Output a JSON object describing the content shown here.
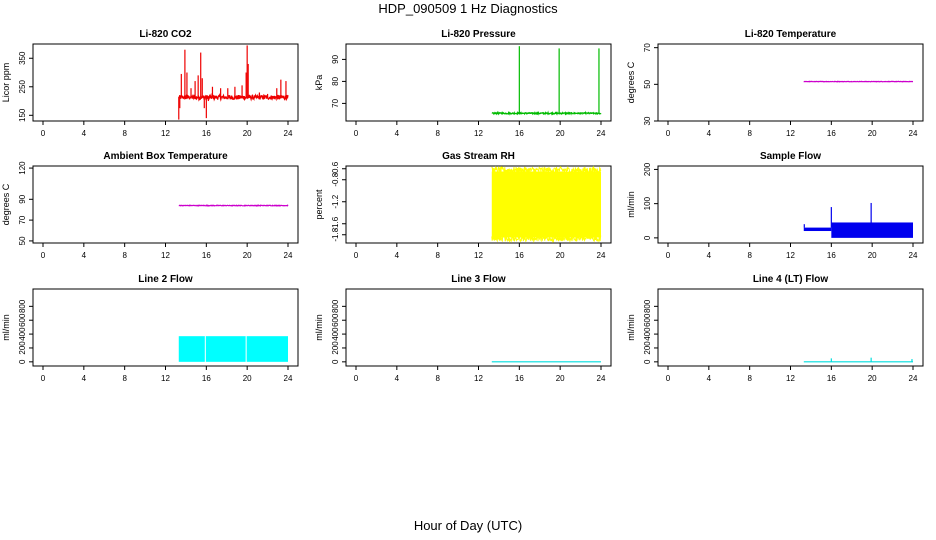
{
  "page": {
    "title": "HDP_090509  1 Hz Diagnostics",
    "xlabel": "Hour of Day (UTC)"
  },
  "chart_data": [
    {
      "id": "co2",
      "type": "line",
      "title": "Li-820 CO2",
      "ylabel": "Licor ppm",
      "color": "#ee0000",
      "xlim": [
        0,
        24
      ],
      "xticks": [
        0,
        4,
        8,
        12,
        16,
        20,
        24
      ],
      "ylim": [
        130,
        400
      ],
      "yticks": [
        150,
        250,
        350
      ],
      "series": [
        {
          "name": "CO2",
          "data_range": [
            13.3,
            24
          ],
          "base": 213,
          "noise": 8,
          "spikes": [
            [
              13.3,
              135
            ],
            [
              13.4,
              175
            ],
            [
              13.55,
              295
            ],
            [
              13.9,
              380
            ],
            [
              14.1,
              300
            ],
            [
              14.5,
              245
            ],
            [
              14.9,
              270
            ],
            [
              15.2,
              290
            ],
            [
              15.45,
              370
            ],
            [
              15.6,
              280
            ],
            [
              15.8,
              175
            ],
            [
              16.0,
              140
            ],
            [
              16.2,
              200
            ],
            [
              16.6,
              250
            ],
            [
              17.4,
              245
            ],
            [
              18.1,
              245
            ],
            [
              18.8,
              250
            ],
            [
              19.5,
              255
            ],
            [
              19.9,
              300
            ],
            [
              20.0,
              395
            ],
            [
              20.1,
              330
            ],
            [
              21.2,
              230
            ],
            [
              22.0,
              225
            ],
            [
              22.9,
              245
            ],
            [
              23.3,
              275
            ],
            [
              23.8,
              270
            ]
          ]
        }
      ]
    },
    {
      "id": "pressure",
      "type": "line",
      "title": "Li-820 Pressure",
      "ylabel": "kPa",
      "color": "#00bb00",
      "xlim": [
        0,
        24
      ],
      "xticks": [
        0,
        4,
        8,
        12,
        16,
        20,
        24
      ],
      "ylim": [
        62,
        97
      ],
      "yticks": [
        70,
        80,
        90
      ],
      "series": [
        {
          "name": "Pressure",
          "data_range": [
            13.3,
            24
          ],
          "base": 65.5,
          "noise": 0.3,
          "spikes": [
            [
              16.0,
              96
            ],
            [
              19.9,
              95
            ],
            [
              23.8,
              95
            ]
          ]
        }
      ]
    },
    {
      "id": "licor-temp",
      "type": "line",
      "title": "Li-820 Temperature",
      "ylabel": "degrees C",
      "color": "#cc00cc",
      "xlim": [
        0,
        24
      ],
      "xticks": [
        0,
        4,
        8,
        12,
        16,
        20,
        24
      ],
      "ylim": [
        30,
        72
      ],
      "yticks": [
        30,
        50,
        70
      ],
      "series": [
        {
          "name": "Temperature",
          "data_range": [
            13.3,
            24
          ],
          "base": 51.5,
          "noise": 0.1,
          "spikes": []
        }
      ]
    },
    {
      "id": "box-temp",
      "type": "line",
      "title": "Ambient Box Temperature",
      "ylabel": "degrees C",
      "color": "#cc00cc",
      "xlim": [
        0,
        24
      ],
      "xticks": [
        0,
        4,
        8,
        12,
        16,
        20,
        24
      ],
      "ylim": [
        48,
        122
      ],
      "yticks": [
        50,
        70,
        90,
        120
      ],
      "series": [
        {
          "name": "Box Temperature",
          "data_range": [
            13.3,
            24
          ],
          "base": 84,
          "noise": 0.3,
          "spikes": []
        }
      ]
    },
    {
      "id": "rh",
      "type": "area",
      "title": "Gas Stream RH",
      "ylabel": "percent",
      "color": "#ffff00",
      "xlim": [
        0,
        24
      ],
      "xticks": [
        0,
        4,
        8,
        12,
        16,
        20,
        24
      ],
      "ylim": [
        -1.95,
        -0.55
      ],
      "yticks": [
        -1.8,
        -1.6,
        -1.2,
        -0.8,
        -0.6
      ],
      "series": [
        {
          "name": "RH",
          "data_range": [
            13.3,
            24
          ],
          "band": [
            -1.85,
            -0.65
          ]
        }
      ]
    },
    {
      "id": "sample-flow",
      "type": "line",
      "title": "Sample Flow",
      "ylabel": "ml/min",
      "color": "#0000ee",
      "xlim": [
        0,
        24
      ],
      "xticks": [
        0,
        4,
        8,
        12,
        16,
        20,
        24
      ],
      "ylim": [
        -15,
        210
      ],
      "yticks": [
        0,
        100,
        200
      ],
      "series": [
        {
          "name": "Sample Flow",
          "data_range": [
            13.3,
            24
          ],
          "segments": [
            [
              13.3,
              16.0,
              20,
              30
            ],
            [
              16.0,
              24.0,
              0,
              45
            ]
          ],
          "spikes": [
            [
              13.35,
              40
            ],
            [
              16.0,
              90
            ],
            [
              19.9,
              102
            ]
          ]
        }
      ]
    },
    {
      "id": "line2",
      "type": "area",
      "title": "Line 2 Flow",
      "ylabel": "ml/min",
      "color": "#00ffff",
      "xlim": [
        0,
        24
      ],
      "xticks": [
        0,
        4,
        8,
        12,
        16,
        20,
        24
      ],
      "ylim": [
        -60,
        1050
      ],
      "yticks": [
        0,
        200,
        400,
        600,
        800
      ],
      "series": [
        {
          "name": "Line 2 Flow",
          "data_range": [
            13.3,
            24
          ],
          "band": [
            0,
            370
          ],
          "gaps": [
            15.9,
            19.9
          ]
        }
      ]
    },
    {
      "id": "line3",
      "type": "line",
      "title": "Line 3 Flow",
      "ylabel": "ml/min",
      "color": "#00dddd",
      "xlim": [
        0,
        24
      ],
      "xticks": [
        0,
        4,
        8,
        12,
        16,
        20,
        24
      ],
      "ylim": [
        -60,
        1050
      ],
      "yticks": [
        0,
        200,
        400,
        600,
        800
      ],
      "series": [
        {
          "name": "Line 3 Flow",
          "data_range": [
            13.3,
            24
          ],
          "base": 0,
          "noise": 0,
          "spikes": []
        }
      ]
    },
    {
      "id": "line4",
      "type": "line",
      "title": "Line 4 (LT) Flow",
      "ylabel": "ml/min",
      "color": "#00dddd",
      "xlim": [
        0,
        24
      ],
      "xticks": [
        0,
        4,
        8,
        12,
        16,
        20,
        24
      ],
      "ylim": [
        -60,
        1050
      ],
      "yticks": [
        0,
        200,
        400,
        600,
        800
      ],
      "series": [
        {
          "name": "Line 4 Flow",
          "data_range": [
            13.3,
            24
          ],
          "base": 0,
          "noise": 0,
          "spikes": [
            [
              16.0,
              50
            ],
            [
              19.9,
              60
            ],
            [
              23.9,
              40
            ]
          ]
        }
      ]
    }
  ]
}
